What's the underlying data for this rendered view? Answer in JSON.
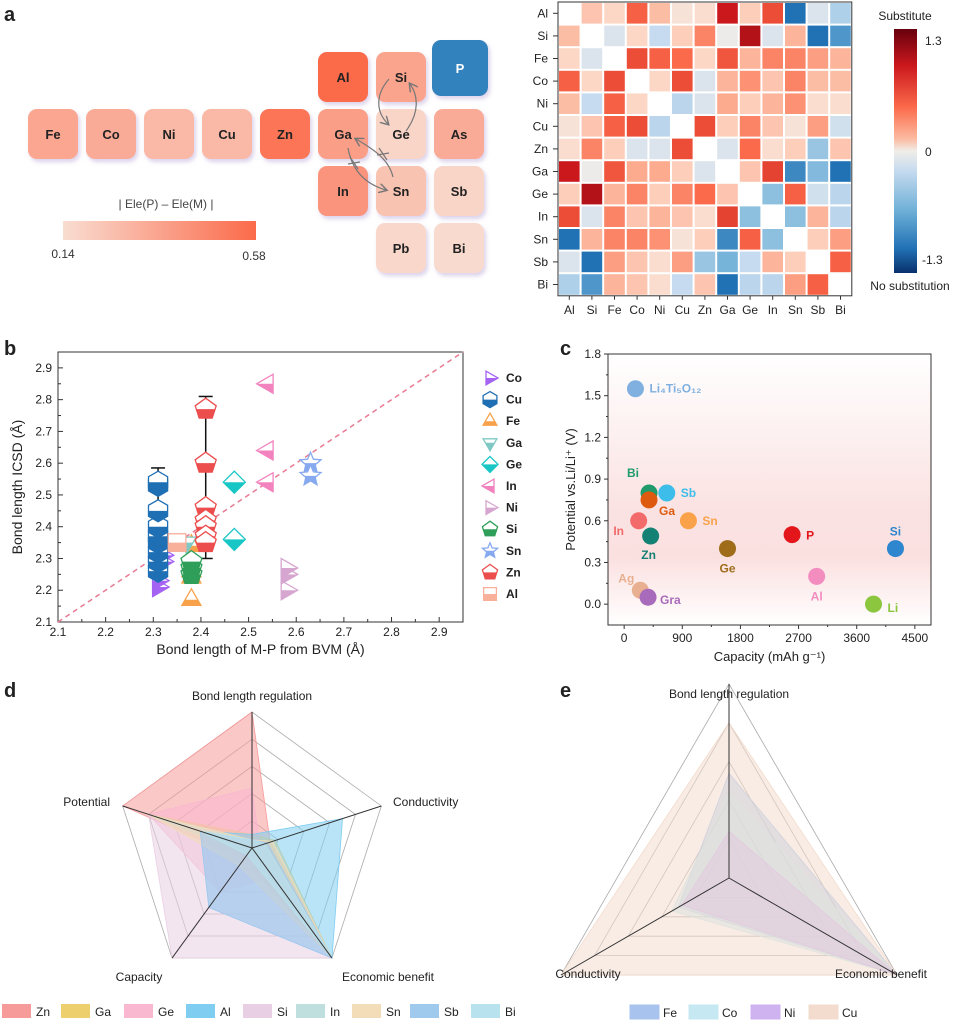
{
  "panels": {
    "a": "a",
    "b": "b",
    "c": "c",
    "d": "d",
    "e": "e"
  },
  "chart_data": [
    {
      "id": "a-periodic",
      "type": "table",
      "title": "| Ele(P) – Ele(M) |",
      "colorbar": {
        "min_label": "0.14",
        "max_label": "0.58",
        "min": 0.14,
        "max": 0.58,
        "color_min": "#f9ddd1",
        "color_max": "#fb6a4a"
      },
      "highlight_color": "#3182bd",
      "elements": [
        {
          "symbol": "Fe",
          "row": 1,
          "col": 0,
          "value": 0.35
        },
        {
          "symbol": "Co",
          "row": 1,
          "col": 1,
          "value": 0.33
        },
        {
          "symbol": "Ni",
          "row": 1,
          "col": 2,
          "value": 0.28
        },
        {
          "symbol": "Cu",
          "row": 1,
          "col": 3,
          "value": 0.28
        },
        {
          "symbol": "Zn",
          "row": 1,
          "col": 4,
          "value": 0.54
        },
        {
          "symbol": "Al",
          "row": 0,
          "col": 5,
          "value": 0.58
        },
        {
          "symbol": "Si",
          "row": 0,
          "col": 6,
          "value": 0.36
        },
        {
          "symbol": "P",
          "row": 0,
          "col": 7,
          "value": null,
          "highlight": true
        },
        {
          "symbol": "Ga",
          "row": 1,
          "col": 5,
          "value": 0.38
        },
        {
          "symbol": "Ge",
          "row": 1,
          "col": 6,
          "value": 0.17
        },
        {
          "symbol": "As",
          "row": 1,
          "col": 7,
          "value": 0.33
        },
        {
          "symbol": "In",
          "row": 2,
          "col": 5,
          "value": 0.42
        },
        {
          "symbol": "Sn",
          "row": 2,
          "col": 6,
          "value": 0.24
        },
        {
          "symbol": "Sb",
          "row": 2,
          "col": 7,
          "value": 0.17
        },
        {
          "symbol": "Pb",
          "row": 3,
          "col": 6,
          "value": 0.16
        },
        {
          "symbol": "Bi",
          "row": 3,
          "col": 7,
          "value": 0.15
        }
      ],
      "arrows": [
        {
          "from": "Si",
          "to": "Ge",
          "blocked": false
        },
        {
          "from": "Ge",
          "to": "Si",
          "blocked": false
        },
        {
          "from": "Sn",
          "to": "Ga",
          "blocked": true
        },
        {
          "from": "Ga",
          "to": "Sn",
          "blocked": true
        }
      ]
    },
    {
      "id": "a-heatmap",
      "type": "heatmap",
      "rows": [
        "Al",
        "Si",
        "Fe",
        "Co",
        "Ni",
        "Cu",
        "Zn",
        "Ga",
        "Ge",
        "In",
        "Sn",
        "Sb",
        "Bi"
      ],
      "cols": [
        "Al",
        "Si",
        "Fe",
        "Co",
        "Ni",
        "Cu",
        "Zn",
        "Ga",
        "Ge",
        "In",
        "Sn",
        "Sb",
        "Bi"
      ],
      "values": [
        [
          null,
          0.3,
          0.2,
          0.75,
          0.35,
          0.1,
          0.15,
          1.15,
          0.25,
          0.85,
          -1.0,
          -0.1,
          -0.3
        ],
        [
          0.35,
          null,
          -0.1,
          0.2,
          -0.2,
          0.25,
          0.6,
          -0.02,
          1.25,
          -0.1,
          0.4,
          -1.0,
          -0.75
        ],
        [
          0.2,
          -0.1,
          null,
          0.85,
          0.75,
          0.7,
          0.2,
          0.8,
          0.4,
          0.6,
          0.6,
          0.5,
          0.4
        ],
        [
          0.75,
          0.2,
          0.85,
          null,
          0.2,
          0.85,
          -0.1,
          0.4,
          0.55,
          0.3,
          0.6,
          0.35,
          0.35
        ],
        [
          0.35,
          -0.2,
          0.75,
          0.2,
          null,
          -0.25,
          -0.1,
          0.45,
          0.25,
          0.4,
          0.55,
          0.15,
          0.15
        ],
        [
          0.1,
          0.3,
          0.75,
          0.85,
          -0.25,
          null,
          0.85,
          0.25,
          0.6,
          0.3,
          0.1,
          0.5,
          -0.15
        ],
        [
          0.15,
          0.6,
          0.25,
          -0.1,
          -0.1,
          0.85,
          null,
          -0.1,
          0.7,
          0.15,
          0.25,
          -0.4,
          0.3
        ],
        [
          1.15,
          -0.02,
          0.8,
          0.45,
          0.45,
          0.25,
          -0.1,
          null,
          0.3,
          0.9,
          -0.85,
          -0.5,
          -1.0
        ],
        [
          0.25,
          1.25,
          0.4,
          0.6,
          0.25,
          0.6,
          0.7,
          0.3,
          null,
          -0.45,
          0.75,
          -0.15,
          -0.25
        ],
        [
          0.85,
          -0.1,
          0.6,
          0.3,
          0.4,
          0.3,
          0.15,
          0.9,
          -0.45,
          null,
          -0.45,
          0.4,
          -0.25
        ],
        [
          -1.0,
          0.4,
          0.6,
          0.6,
          0.55,
          0.1,
          0.25,
          -0.85,
          0.75,
          -0.45,
          null,
          0.25,
          0.5
        ],
        [
          -0.1,
          -1.0,
          0.5,
          0.3,
          0.15,
          0.5,
          -0.4,
          -0.55,
          -0.2,
          0.4,
          0.25,
          null,
          0.75
        ],
        [
          -0.3,
          -0.75,
          0.4,
          0.3,
          0.15,
          -0.2,
          0.3,
          -1.0,
          -0.25,
          -0.25,
          0.5,
          0.75,
          null
        ]
      ],
      "colorbar": {
        "title_top": "Substitute",
        "title_bottom": "No substitution",
        "ticks": [
          "1.3",
          "0",
          "-1.3"
        ],
        "vmin": -1.3,
        "vmax": 1.3
      }
    },
    {
      "id": "b",
      "type": "scatter",
      "xlabel": "Bond length of M-P from BVM (Å)",
      "ylabel": "Bond length ICSD (Å)",
      "xlim": [
        2.1,
        2.95
      ],
      "ylim": [
        2.1,
        2.95
      ],
      "xticks": [
        "2.1",
        "2.2",
        "2.3",
        "2.4",
        "2.5",
        "2.6",
        "2.7",
        "2.8",
        "2.9"
      ],
      "yticks": [
        "2.1",
        "2.2",
        "2.3",
        "2.4",
        "2.5",
        "2.6",
        "2.7",
        "2.8",
        "2.9"
      ],
      "reference_line": "y = x",
      "legend_position": "right",
      "series": [
        {
          "name": "Co",
          "marker": "triangle-right",
          "color": "#a463f2",
          "points": [
            [
              2.31,
              2.21
            ],
            [
              2.31,
              2.23
            ],
            [
              2.32,
              2.29
            ],
            [
              2.32,
              2.31
            ]
          ]
        },
        {
          "name": "Cu",
          "marker": "hexagon",
          "color": "#1f6fb4",
          "points": [
            [
              2.31,
              2.26
            ],
            [
              2.31,
              2.29
            ],
            [
              2.31,
              2.32
            ],
            [
              2.31,
              2.35
            ],
            [
              2.31,
              2.37
            ],
            [
              2.31,
              2.4
            ],
            [
              2.31,
              2.45
            ],
            [
              2.31,
              2.53
            ],
            [
              2.31,
              2.54
            ]
          ]
        },
        {
          "name": "Fe",
          "marker": "triangle-up",
          "color": "#f7a14a",
          "points": [
            [
              2.38,
              2.17
            ],
            [
              2.38,
              2.24
            ],
            [
              2.38,
              2.26
            ],
            [
              2.38,
              2.34
            ]
          ]
        },
        {
          "name": "Ga",
          "marker": "triangle-down",
          "color": "#7fc8c4",
          "points": [
            [
              2.37,
              2.35
            ]
          ]
        },
        {
          "name": "Ge",
          "marker": "diamond",
          "color": "#19c6c6",
          "points": [
            [
              2.47,
              2.54
            ],
            [
              2.47,
              2.36
            ]
          ]
        },
        {
          "name": "In",
          "marker": "triangle-left",
          "color": "#f283be",
          "points": [
            [
              2.54,
              2.85
            ],
            [
              2.54,
              2.64
            ],
            [
              2.54,
              2.54
            ]
          ]
        },
        {
          "name": "Ni",
          "marker": "triangle-right",
          "color": "#d6a6d0",
          "points": [
            [
              2.58,
              2.2
            ],
            [
              2.58,
              2.25
            ],
            [
              2.58,
              2.27
            ]
          ]
        },
        {
          "name": "Si",
          "marker": "pentagon",
          "color": "#2e9e58",
          "points": [
            [
              2.38,
              2.25
            ],
            [
              2.38,
              2.27
            ],
            [
              2.38,
              2.29
            ]
          ]
        },
        {
          "name": "Sn",
          "marker": "star",
          "color": "#86a9ef",
          "points": [
            [
              2.63,
              2.6
            ],
            [
              2.63,
              2.56
            ]
          ]
        },
        {
          "name": "Zn",
          "marker": "pentagon-down",
          "color": "#ec4d4d",
          "points": [
            [
              2.41,
              2.77
            ],
            [
              2.41,
              2.6
            ],
            [
              2.41,
              2.46
            ],
            [
              2.41,
              2.42
            ],
            [
              2.41,
              2.4
            ],
            [
              2.41,
              2.37
            ],
            [
              2.41,
              2.35
            ]
          ]
        },
        {
          "name": "Al",
          "marker": "square",
          "color": "#f8b09a",
          "points": [
            [
              2.35,
              2.35
            ]
          ]
        }
      ],
      "error_bars": [
        {
          "x": 2.31,
          "low": 2.24,
          "high": 2.585
        },
        {
          "x": 2.41,
          "low": 2.3,
          "high": 2.81
        }
      ]
    },
    {
      "id": "c",
      "type": "scatter",
      "xlabel": "Capacity (mAh g⁻¹)",
      "ylabel": "Potential vs.Li/Li⁺ (V)",
      "xlim": [
        -250,
        4750
      ],
      "ylim": [
        -0.15,
        1.8
      ],
      "xticks": [
        "0",
        "900",
        "1800",
        "2700",
        "3600",
        "4500"
      ],
      "yticks": [
        "0.0",
        "0.3",
        "0.6",
        "0.9",
        "1.2",
        "1.5",
        "1.8"
      ],
      "points": [
        {
          "label": "Li₄Ti₅O₁₂",
          "x": 175,
          "y": 1.55,
          "color": "#7fb0e0"
        },
        {
          "label": "Bi",
          "x": 385,
          "y": 0.8,
          "color": "#1f9a6a"
        },
        {
          "label": "Sb",
          "x": 660,
          "y": 0.8,
          "color": "#3dbde9"
        },
        {
          "label": "Ga",
          "x": 385,
          "y": 0.75,
          "color": "#de5a0e"
        },
        {
          "label": "In",
          "x": 225,
          "y": 0.6,
          "color": "#f36a6a"
        },
        {
          "label": "Sn",
          "x": 995,
          "y": 0.6,
          "color": "#f9a24a"
        },
        {
          "label": "Zn",
          "x": 410,
          "y": 0.49,
          "color": "#138174"
        },
        {
          "label": "Ge",
          "x": 1600,
          "y": 0.4,
          "color": "#9f6d1a"
        },
        {
          "label": "P",
          "x": 2600,
          "y": 0.5,
          "color": "#e3161b"
        },
        {
          "label": "Si",
          "x": 4200,
          "y": 0.4,
          "color": "#2e86cf"
        },
        {
          "label": "Al",
          "x": 2980,
          "y": 0.2,
          "color": "#f38cbf"
        },
        {
          "label": "Li",
          "x": 3860,
          "y": 0.0,
          "color": "#8cc63f"
        },
        {
          "label": "Ag",
          "x": 250,
          "y": 0.1,
          "color": "#e8b090"
        },
        {
          "label": "Gra",
          "x": 370,
          "y": 0.05,
          "color": "#a86bbb"
        }
      ]
    },
    {
      "id": "d",
      "type": "radar",
      "axes": [
        "Bond length regulation",
        "Conductivity",
        "Economic benefit",
        "Capacity",
        "Potential"
      ],
      "max": 5,
      "legend_position": "bottom",
      "series": [
        {
          "name": "Zn",
          "color": "#f79a9a",
          "values": [
            5,
            0.7,
            5,
            0.5,
            5
          ]
        },
        {
          "name": "Ga",
          "color": "#eecf6e",
          "values": [
            0.5,
            0.9,
            5,
            0.5,
            4
          ]
        },
        {
          "name": "Ge",
          "color": "#f9b7d0",
          "values": [
            2.2,
            0.3,
            1.3,
            2.0,
            4
          ]
        },
        {
          "name": "Al",
          "color": "#7fcdf0",
          "values": [
            0.5,
            3.5,
            5,
            2.7,
            2.0
          ]
        },
        {
          "name": "Si",
          "color": "#e9cfe3",
          "values": [
            0.2,
            0.5,
            5,
            5,
            4
          ]
        },
        {
          "name": "In",
          "color": "#bfdede",
          "values": [
            0.3,
            0.5,
            5,
            0.3,
            4
          ]
        },
        {
          "name": "Sn",
          "color": "#f2ddb8",
          "values": [
            0.3,
            0.8,
            5,
            0.8,
            4
          ]
        },
        {
          "name": "Sb",
          "color": "#a0c9ee",
          "values": [
            0.3,
            0.6,
            5,
            2.7,
            2.0
          ]
        },
        {
          "name": "Bi",
          "color": "#b8e2ee",
          "values": [
            0.3,
            0.5,
            5,
            0.3,
            2.0
          ]
        }
      ]
    },
    {
      "id": "e",
      "type": "radar",
      "axes": [
        "Bond length regulation",
        "Economic benefit",
        "Conductivity"
      ],
      "max": 5,
      "legend_position": "bottom",
      "series": [
        {
          "name": "Fe",
          "color": "#a8c4ee",
          "values": [
            2.7,
            5,
            1.5
          ]
        },
        {
          "name": "Co",
          "color": "#c6e8f2",
          "values": [
            2.2,
            5,
            1.7
          ]
        },
        {
          "name": "Ni",
          "color": "#cfb2f0",
          "values": [
            1.2,
            5,
            1.4
          ]
        },
        {
          "name": "Cu",
          "color": "#f3dccd",
          "values": [
            4.0,
            5,
            5
          ]
        }
      ]
    }
  ]
}
